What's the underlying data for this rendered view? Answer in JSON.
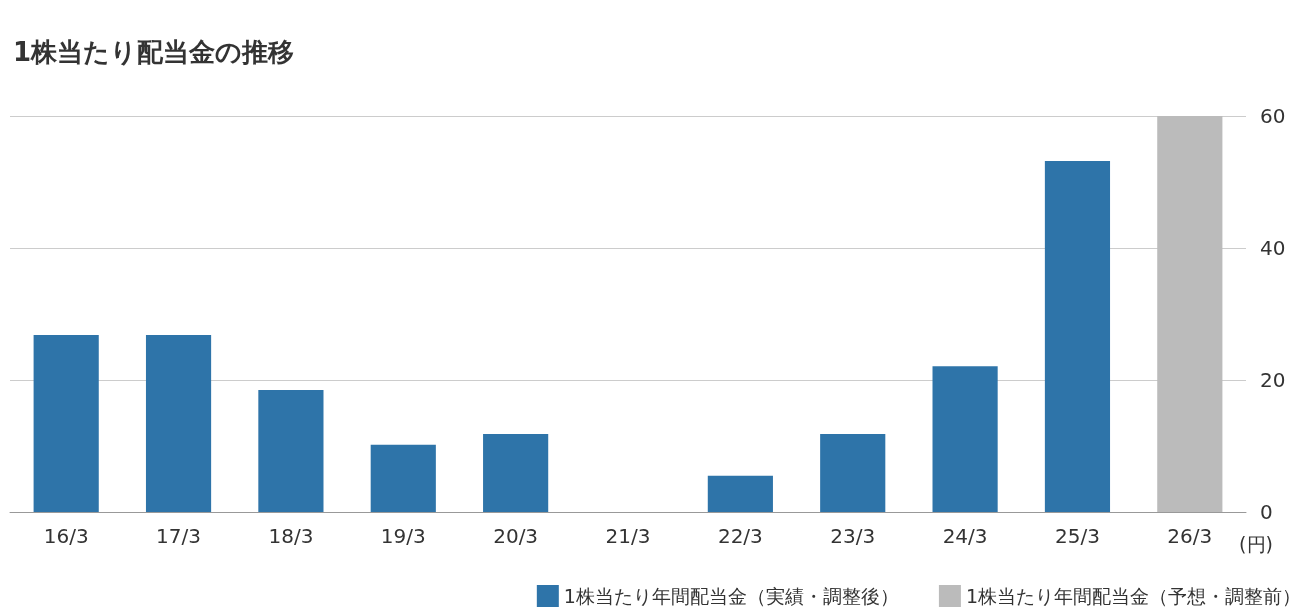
{
  "chart_data": {
    "type": "bar",
    "title": "1株当たり配当金の推移",
    "ylabel": "(円)",
    "categories": [
      "16/3",
      "17/3",
      "18/3",
      "19/3",
      "20/3",
      "21/3",
      "22/3",
      "23/3",
      "24/3",
      "25/3",
      "26/3"
    ],
    "series": [
      {
        "name": "1株当たり年間配当金（実績・調整後）",
        "color": "#2e74a9",
        "values": [
          26.8,
          26.8,
          18.5,
          10.2,
          11.8,
          0,
          5.5,
          11.8,
          22.1,
          53.2,
          null
        ]
      },
      {
        "name": "1株当たり年間配当金（予想・調整前）",
        "color": "#bbbbbb",
        "values": [
          null,
          null,
          null,
          null,
          null,
          null,
          null,
          null,
          null,
          null,
          60
        ]
      }
    ],
    "ylim": [
      0,
      60
    ],
    "yticks": [
      0,
      20,
      40,
      60
    ],
    "grid": "y",
    "legend": "bottom right"
  }
}
